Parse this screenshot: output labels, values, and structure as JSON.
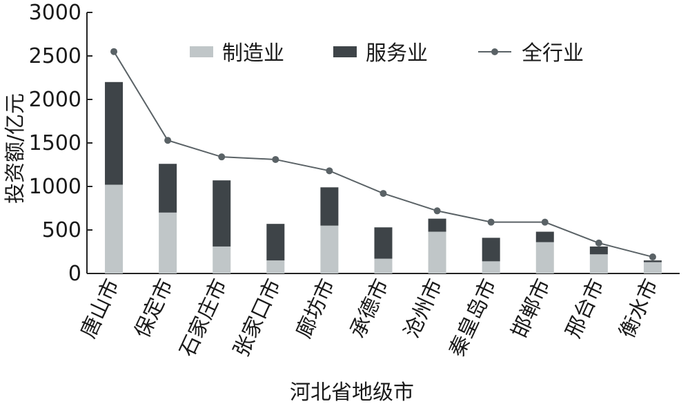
{
  "chart_data": {
    "type": "bar",
    "stacked": true,
    "xlabel": "河北省地级市",
    "ylabel": "投资额/亿元",
    "ylim": [
      0,
      3000
    ],
    "yticks": [
      0,
      500,
      1000,
      1500,
      2000,
      2500,
      3000
    ],
    "categories": [
      "唐山市",
      "保定市",
      "石家庄市",
      "张家口市",
      "廊坊市",
      "承德市",
      "沧州市",
      "秦皇岛市",
      "邯郸市",
      "邢台市",
      "衡水市"
    ],
    "series": [
      {
        "name": "制造业",
        "kind": "bar",
        "color": "#c0c6c8",
        "values": [
          1020,
          700,
          310,
          150,
          550,
          170,
          480,
          140,
          360,
          220,
          130
        ]
      },
      {
        "name": "服务业",
        "kind": "bar",
        "color": "#3e4448",
        "values": [
          1180,
          560,
          760,
          420,
          440,
          360,
          150,
          270,
          120,
          90,
          20
        ]
      },
      {
        "name": "全行业",
        "kind": "line",
        "color": "#5a6266",
        "values": [
          2550,
          1530,
          1340,
          1310,
          1180,
          920,
          720,
          590,
          590,
          350,
          190
        ]
      }
    ],
    "grid": false,
    "legend": "top-right"
  }
}
